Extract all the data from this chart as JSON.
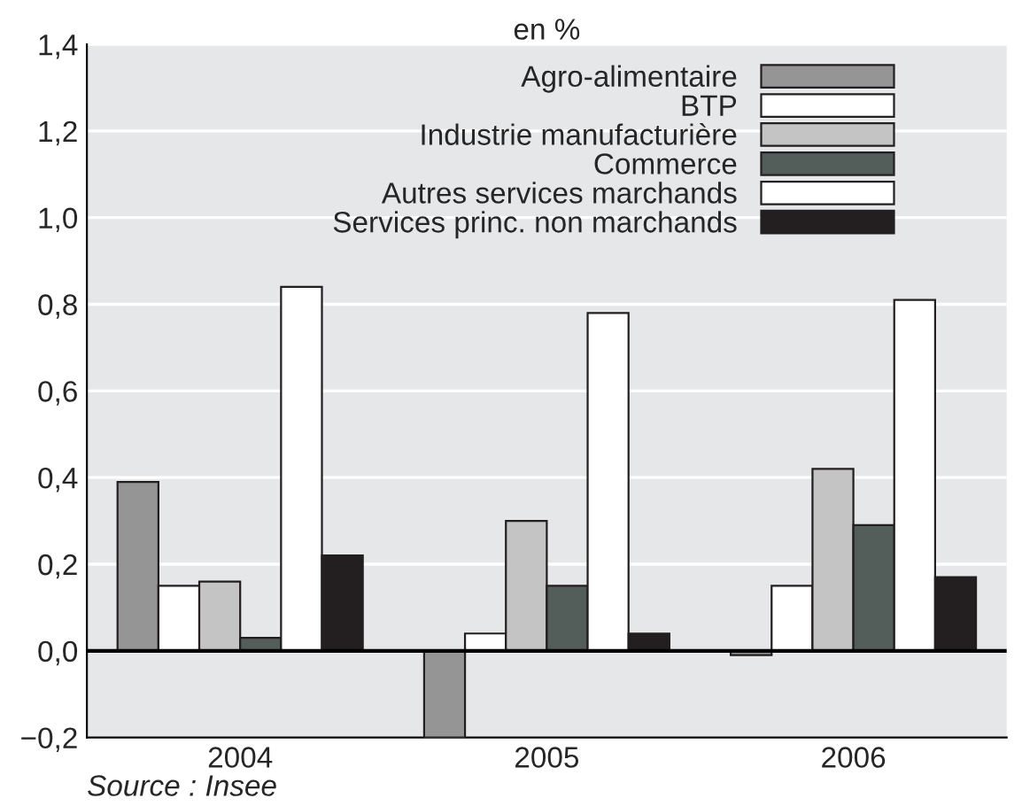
{
  "chart_data": {
    "type": "bar",
    "title": "en %",
    "categories": [
      "2004",
      "2005",
      "2006"
    ],
    "series": [
      {
        "name": "Agro-alimentaire",
        "color": "#959595",
        "values": [
          0.39,
          -0.2,
          -0.01
        ]
      },
      {
        "name": "BTP",
        "color": "#ffffff",
        "values": [
          0.15,
          0.04,
          0.15
        ]
      },
      {
        "name": "Industrie manufacturière",
        "color": "#c4c4c4",
        "values": [
          0.16,
          0.3,
          0.42
        ]
      },
      {
        "name": "Commerce",
        "color": "#535d5a",
        "values": [
          0.03,
          0.15,
          0.29
        ]
      },
      {
        "name": "Autres services marchands",
        "color": "#ffffff",
        "values": [
          0.84,
          0.78,
          0.81
        ]
      },
      {
        "name": "Services princ. non marchands",
        "color": "#231f20",
        "values": [
          0.22,
          0.04,
          0.17
        ]
      }
    ],
    "ylim": [
      -0.2,
      1.4
    ],
    "yticks": [
      {
        "value": -0.2,
        "label": "−0,2"
      },
      {
        "value": 0,
        "label": "0,0"
      },
      {
        "value": 0.2,
        "label": "0,2"
      },
      {
        "value": 0.4,
        "label": "0,4"
      },
      {
        "value": 0.6,
        "label": "0,6"
      },
      {
        "value": 0.8,
        "label": "0,8"
      },
      {
        "value": 1.0,
        "label": "1,0"
      },
      {
        "value": 1.2,
        "label": "1,2"
      },
      {
        "value": 1.4,
        "label": "1,4"
      }
    ],
    "grid": "y",
    "legend": "top right",
    "annotations": [
      "Source : Insee"
    ]
  }
}
